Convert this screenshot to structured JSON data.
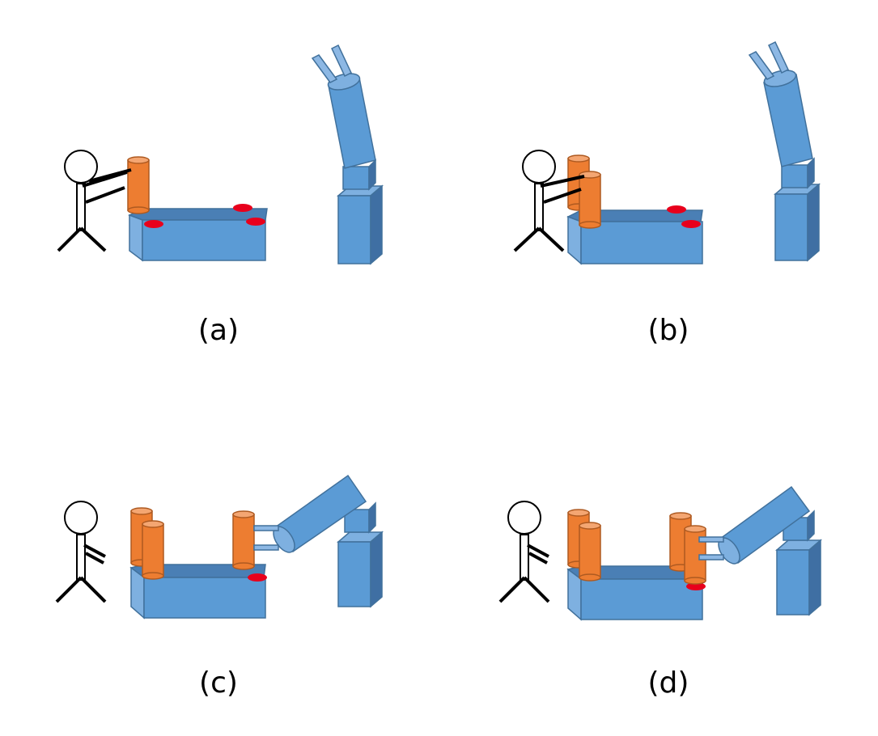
{
  "colors": {
    "table_front": "#5b9bd5",
    "table_top": "#4a7fb5",
    "table_side": "#7eb0e0",
    "outline": "#41719c",
    "cylinder": "#ed7d31",
    "cylinder_top": "#f4a672",
    "cylinder_outline": "#ae5a21",
    "target_spot": "#e8001c",
    "robot": "#5b9bd5",
    "robot_dark": "#3f6fa3",
    "gripper": "#8db8e4",
    "human_line": "#000000"
  },
  "icons": [
    "human-figure-icon",
    "table-icon",
    "cylinder-icon",
    "robot-arm-icon"
  ],
  "panels": [
    {
      "id": "a",
      "label": "(a)",
      "human_holding": true,
      "cylinders_on_table": 1,
      "cylinders_held_by_robot": 0,
      "robot_pose": "up"
    },
    {
      "id": "b",
      "label": "(b)",
      "human_holding": true,
      "cylinders_on_table": 2,
      "cylinders_held_by_robot": 0,
      "robot_pose": "up"
    },
    {
      "id": "c",
      "label": "(c)",
      "human_holding": false,
      "cylinders_on_table": 3,
      "cylinders_held_by_robot": 0,
      "robot_pose": "reaching"
    },
    {
      "id": "d",
      "label": "(d)",
      "human_holding": false,
      "cylinders_on_table": 3,
      "cylinders_held_by_robot": 1,
      "robot_pose": "reaching"
    }
  ]
}
